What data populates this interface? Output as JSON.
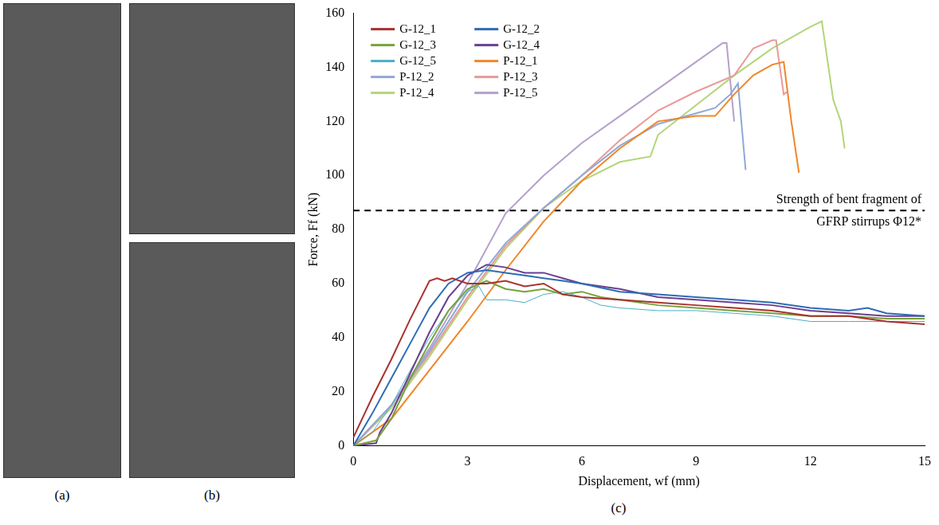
{
  "panel_labels": [
    "(a)",
    "(b)",
    "(c)"
  ],
  "chart_data": {
    "type": "line",
    "x_label": "Displacement, wf (mm)",
    "y_label": "Force, Ff (kN)",
    "xlim": [
      0,
      15
    ],
    "xticks": [
      0,
      3,
      6,
      9,
      12,
      15
    ],
    "ylim": [
      0,
      160
    ],
    "yticks": [
      0,
      20,
      40,
      60,
      80,
      100,
      120,
      140,
      160
    ],
    "grid": false,
    "legend": "upper left",
    "reference_line": {
      "value": 87,
      "label": [
        "Strength of bent fragment of",
        "GFRP stirrups Φ12*"
      ],
      "line_style": "dashed",
      "color": "#000000"
    },
    "series": [
      {
        "name": "G-12_1",
        "color": "#a8322f",
        "x": [
          0,
          0.5,
          1,
          1.5,
          2,
          2.2,
          2.4,
          2.6,
          3,
          3.5,
          4,
          4.5,
          5,
          5.5,
          6,
          7,
          8,
          9,
          10,
          11,
          12,
          13,
          14,
          15
        ],
        "values": [
          3,
          18,
          32,
          47,
          61,
          62,
          61,
          62,
          60,
          60,
          61,
          59,
          60,
          56,
          55,
          54,
          53,
          52,
          51,
          50,
          48,
          48,
          46,
          45
        ]
      },
      {
        "name": "G-12_2",
        "color": "#2e6cb4",
        "x": [
          0,
          0.5,
          1,
          1.5,
          2,
          2.5,
          3,
          3.5,
          4,
          4.5,
          5,
          5.5,
          6,
          7,
          8,
          9,
          10,
          11,
          12,
          13,
          13.5,
          14,
          15
        ],
        "values": [
          0,
          12,
          25,
          38,
          51,
          60,
          64,
          65,
          64,
          63,
          62,
          61,
          60,
          57,
          56,
          55,
          54,
          53,
          51,
          50,
          51,
          49,
          48
        ]
      },
      {
        "name": "G-12_3",
        "color": "#77a23b",
        "x": [
          0,
          0.6,
          1,
          1.5,
          2,
          2.5,
          3,
          3.5,
          4,
          4.5,
          5,
          5.5,
          6,
          6.5,
          7,
          8,
          9,
          10,
          11,
          12,
          13,
          14,
          15
        ],
        "values": [
          0,
          2,
          10,
          25,
          38,
          50,
          58,
          61,
          58,
          57,
          58,
          56,
          57,
          55,
          54,
          52,
          51,
          50,
          49,
          48,
          48,
          47,
          47
        ]
      },
      {
        "name": "G-12_4",
        "color": "#6b3f90",
        "x": [
          0,
          0.6,
          0.7,
          1,
          1.5,
          2,
          2.5,
          3,
          3.5,
          4,
          4.5,
          5,
          5.5,
          6,
          7,
          8,
          9,
          10,
          11,
          12,
          13,
          14,
          15
        ],
        "values": [
          0,
          1,
          5,
          12,
          27,
          42,
          55,
          63,
          67,
          66,
          64,
          64,
          62,
          60,
          58,
          55,
          54,
          53,
          52,
          50,
          49,
          48,
          48
        ]
      },
      {
        "name": "G-12_5",
        "color": "#4aafc8",
        "x": [
          0,
          0.5,
          1,
          1.5,
          2,
          2.5,
          3,
          3.3,
          3.5,
          4,
          4.5,
          5,
          5.5,
          6,
          6.5,
          7,
          8,
          9,
          10,
          11,
          12,
          13,
          14,
          15
        ],
        "values": [
          0,
          5,
          15,
          28,
          40,
          50,
          57,
          59,
          54,
          54,
          53,
          56,
          57,
          55,
          52,
          51,
          50,
          50,
          49,
          48,
          46,
          46,
          46,
          46
        ]
      },
      {
        "name": "P-12_1",
        "color": "#f0862b",
        "x": [
          0,
          1,
          2,
          3,
          4,
          5,
          6,
          7,
          8,
          9,
          9.5,
          10,
          10.5,
          11,
          11.3,
          11.5,
          11.7
        ],
        "values": [
          0,
          10,
          28,
          46,
          65,
          83,
          98,
          110,
          120,
          122,
          122,
          130,
          137,
          141,
          142,
          120,
          101
        ]
      },
      {
        "name": "P-12_2",
        "color": "#8fa9d8",
        "x": [
          0,
          1,
          2,
          3,
          4,
          5,
          6,
          7,
          8,
          9,
          9.5,
          9.9,
          10.1,
          10.3
        ],
        "values": [
          0,
          15,
          35,
          57,
          75,
          88,
          100,
          111,
          119,
          123,
          125,
          130,
          134,
          102
        ]
      },
      {
        "name": "P-12_3",
        "color": "#e99a98",
        "x": [
          0,
          1,
          2,
          3,
          4,
          5,
          6,
          7,
          8,
          9,
          10,
          10.5,
          11,
          11.1,
          11.3,
          11.4
        ],
        "values": [
          0,
          15,
          34,
          55,
          74,
          88,
          100,
          113,
          124,
          131,
          137,
          147,
          150,
          150,
          130,
          131
        ]
      },
      {
        "name": "P-12_4",
        "color": "#b4d57a",
        "x": [
          0,
          1,
          2,
          3,
          4,
          5,
          6,
          7,
          7.8,
          8,
          9,
          10,
          11,
          12,
          12.3,
          12.6,
          12.8,
          12.9
        ],
        "values": [
          0,
          14,
          33,
          54,
          73,
          88,
          98,
          105,
          107,
          115,
          126,
          137,
          147,
          155,
          157,
          128,
          120,
          110
        ]
      },
      {
        "name": "P-12_5",
        "color": "#b4a0cb",
        "x": [
          0,
          1,
          2,
          3,
          4,
          5,
          6,
          7,
          8,
          9,
          9.7,
          9.8,
          10
        ],
        "values": [
          0,
          15,
          36,
          60,
          86,
          100,
          112,
          122,
          132,
          142,
          149,
          149,
          120
        ]
      }
    ]
  }
}
